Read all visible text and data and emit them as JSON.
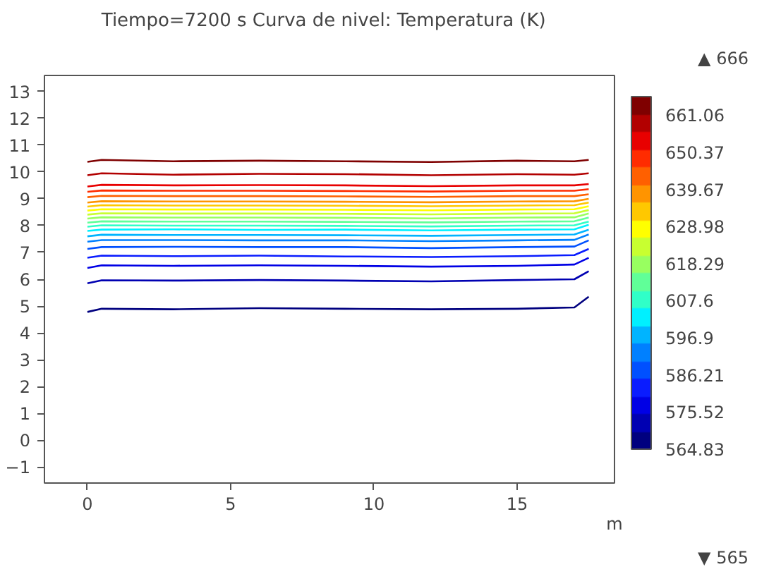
{
  "chart_data": {
    "type": "line",
    "title": "Tiempo=7200 s   Curva de nivel: Temperatura (K)",
    "xlabel": "m",
    "x": [
      0,
      0.5,
      3,
      6,
      9,
      12,
      15,
      17,
      17.5
    ],
    "series": [
      {
        "color": "#00007f",
        "values": [
          4.78,
          4.9,
          4.88,
          4.92,
          4.9,
          4.88,
          4.9,
          4.95,
          5.35
        ]
      },
      {
        "color": "#0000b2",
        "values": [
          5.85,
          5.96,
          5.95,
          5.97,
          5.95,
          5.92,
          5.97,
          6.0,
          6.3
        ]
      },
      {
        "color": "#0000e5",
        "values": [
          6.42,
          6.52,
          6.5,
          6.52,
          6.5,
          6.47,
          6.5,
          6.55,
          6.8
        ]
      },
      {
        "color": "#0a1cff",
        "values": [
          6.8,
          6.88,
          6.86,
          6.88,
          6.85,
          6.83,
          6.86,
          6.9,
          7.13
        ]
      },
      {
        "color": "#0050ff",
        "values": [
          7.13,
          7.2,
          7.21,
          7.2,
          7.2,
          7.16,
          7.2,
          7.22,
          7.45
        ]
      },
      {
        "color": "#0080ff",
        "values": [
          7.4,
          7.46,
          7.46,
          7.45,
          7.45,
          7.42,
          7.45,
          7.47,
          7.67
        ]
      },
      {
        "color": "#00b4ff",
        "values": [
          7.6,
          7.66,
          7.65,
          7.65,
          7.64,
          7.62,
          7.65,
          7.67,
          7.85
        ]
      },
      {
        "color": "#00f0ff",
        "values": [
          7.8,
          7.85,
          7.86,
          7.84,
          7.85,
          7.82,
          7.85,
          7.86,
          8.03
        ]
      },
      {
        "color": "#30ffc8",
        "values": [
          7.96,
          8.01,
          8.0,
          8.0,
          7.99,
          7.97,
          8.0,
          8.01,
          8.15
        ]
      },
      {
        "color": "#60ff98",
        "values": [
          8.11,
          8.16,
          8.15,
          8.15,
          8.14,
          8.12,
          8.15,
          8.16,
          8.3
        ]
      },
      {
        "color": "#98ff60",
        "values": [
          8.26,
          8.31,
          8.3,
          8.3,
          8.29,
          8.27,
          8.3,
          8.31,
          8.45
        ]
      },
      {
        "color": "#c8ff30",
        "values": [
          8.41,
          8.46,
          8.45,
          8.45,
          8.44,
          8.42,
          8.45,
          8.46,
          8.58
        ]
      },
      {
        "color": "#ffff00",
        "values": [
          8.56,
          8.61,
          8.6,
          8.6,
          8.59,
          8.57,
          8.6,
          8.61,
          8.72
        ]
      },
      {
        "color": "#ffc800",
        "values": [
          8.71,
          8.76,
          8.75,
          8.75,
          8.74,
          8.72,
          8.75,
          8.76,
          8.86
        ]
      },
      {
        "color": "#ff9400",
        "values": [
          8.86,
          8.91,
          8.9,
          8.9,
          8.89,
          8.87,
          8.9,
          8.91,
          9.0
        ]
      },
      {
        "color": "#ff6000",
        "values": [
          9.06,
          9.11,
          9.1,
          9.1,
          9.09,
          9.07,
          9.1,
          9.1,
          9.17
        ]
      },
      {
        "color": "#ff2c00",
        "values": [
          9.26,
          9.31,
          9.3,
          9.3,
          9.29,
          9.27,
          9.3,
          9.3,
          9.36
        ]
      },
      {
        "color": "#e80000",
        "values": [
          9.46,
          9.52,
          9.5,
          9.51,
          9.5,
          9.47,
          9.5,
          9.5,
          9.55
        ]
      },
      {
        "color": "#b20000",
        "values": [
          9.88,
          9.95,
          9.9,
          9.93,
          9.92,
          9.88,
          9.92,
          9.9,
          9.95
        ]
      },
      {
        "color": "#7f0000",
        "values": [
          10.38,
          10.45,
          10.4,
          10.42,
          10.4,
          10.37,
          10.42,
          10.4,
          10.45
        ]
      }
    ],
    "xlim": [
      -1.5,
      18.4
    ],
    "ylim": [
      -1.6,
      13.6
    ],
    "xticks": [
      0,
      5,
      10,
      15
    ],
    "yticks": [
      -1,
      0,
      1,
      2,
      3,
      4,
      5,
      6,
      7,
      8,
      9,
      10,
      11,
      12,
      13
    ],
    "clim": [
      564.83,
      666.39
    ],
    "cticks": [
      564.83,
      575.52,
      586.21,
      596.9,
      607.6,
      618.29,
      628.98,
      639.67,
      650.37,
      661.06
    ],
    "annotations": [
      "▲ 666",
      "▼ 565"
    ],
    "grid": false
  }
}
